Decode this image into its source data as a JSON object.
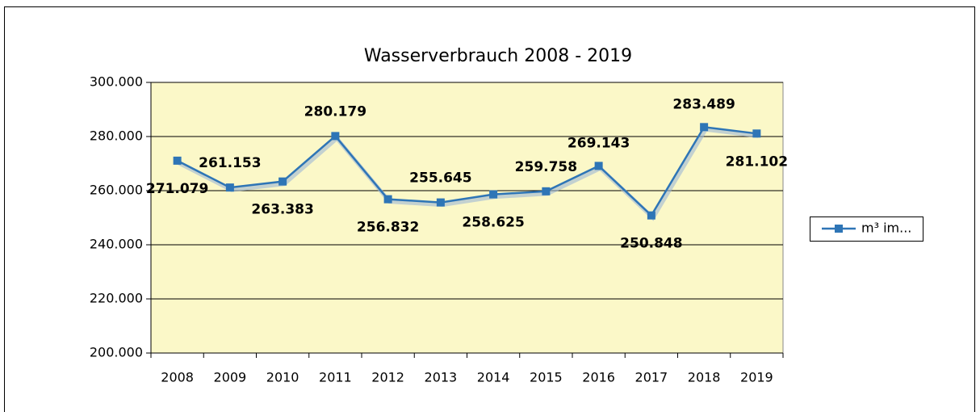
{
  "chart_data": {
    "type": "line",
    "title": "Wasserverbrauch 2008  - 2019",
    "categories": [
      "2008",
      "2009",
      "2010",
      "2011",
      "2012",
      "2013",
      "2014",
      "2015",
      "2016",
      "2017",
      "2018",
      "2019"
    ],
    "series": [
      {
        "name": "m³ im...",
        "color": "#2e75b6",
        "values": [
          271079,
          261153,
          263383,
          280179,
          256832,
          255645,
          258625,
          259758,
          269143,
          250848,
          283489,
          281102
        ],
        "value_labels": [
          "271.079",
          "261.153",
          "263.383",
          "280.179",
          "256.832",
          "255.645",
          "258.625",
          "259.758",
          "269.143",
          "250.848",
          "283.489",
          "281.102"
        ]
      }
    ],
    "ylim": [
      200000,
      300000
    ],
    "yticks": [
      {
        "value": 200000,
        "label": "200.000"
      },
      {
        "value": 220000,
        "label": "220.000"
      },
      {
        "value": 240000,
        "label": "240.000"
      },
      {
        "value": 260000,
        "label": "260.000"
      },
      {
        "value": 280000,
        "label": "280.000"
      },
      {
        "value": 300000,
        "label": "300.000"
      }
    ],
    "grid": true,
    "legend": "right"
  }
}
